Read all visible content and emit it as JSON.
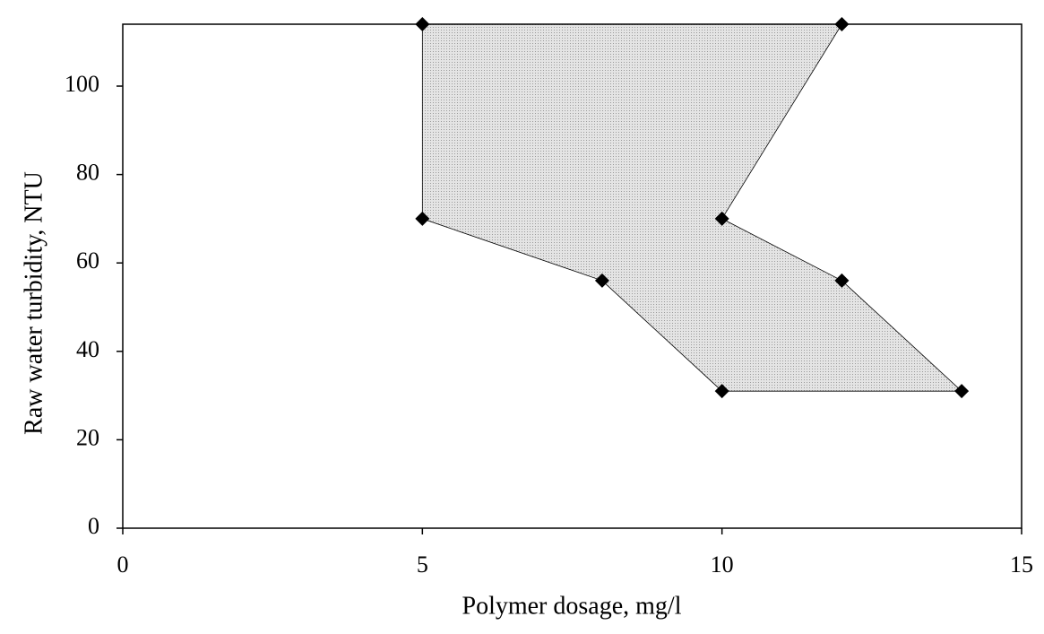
{
  "chart_data": {
    "type": "scatter",
    "x_label": "Polymer dosage, mg/l",
    "y_label": "Raw water turbidity, NTU",
    "xlim": [
      0,
      15
    ],
    "xticks": [
      0,
      5,
      10,
      15
    ],
    "ylim": [
      0,
      114
    ],
    "yticks": [
      0,
      20,
      40,
      60,
      80,
      100
    ],
    "series": [
      {
        "color": "#000000",
        "fill_color": "#d6d6d6",
        "x": [
          5,
          12,
          10,
          12,
          14,
          10,
          8,
          5
        ],
        "values": [
          114,
          114,
          70,
          56,
          31,
          31,
          56,
          70
        ]
      }
    ]
  }
}
